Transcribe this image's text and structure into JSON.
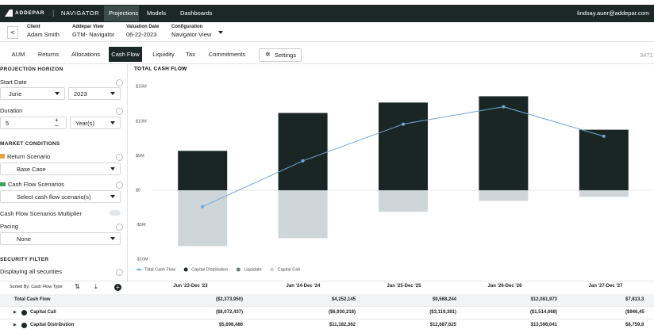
{
  "nav": {
    "logo": "ADDEPAR",
    "product": "NAVIGATOR",
    "tabs": [
      "Projections",
      "Models",
      "Dashboards"
    ],
    "user": "lindsay.auer@addepar.com"
  },
  "context": [
    {
      "label": "Client",
      "value": "Adam Smith"
    },
    {
      "label": "Addepar View",
      "value": "GTM- Navigator"
    },
    {
      "label": "Valuation Date",
      "value": "06-22-2023"
    },
    {
      "label": "Configuration",
      "value": "Navigator View"
    }
  ],
  "tabs": {
    "items": [
      "AUM",
      "Returns",
      "Allocations",
      "Cash Flow",
      "Liquidity",
      "Tax",
      "Commitments"
    ],
    "settings": "Settings",
    "right": "3471"
  },
  "sidebar": {
    "horizon": "PROJECTION HORIZON",
    "start_date": "Start Date",
    "month": "June",
    "year": "2023",
    "duration": "Duration",
    "duration_value": "5",
    "duration_unit": "Year(s)",
    "market": "MARKET CONDITIONS",
    "return_scenario": "Return Scenario",
    "return_value": "Base Case",
    "cf_scenarios": "Cash Flow Scenarios",
    "cf_value": "Select cash flow scenario(s)",
    "multiplier": "Cash Flow Scenarios Multiplier",
    "pacing": "Pacing",
    "pacing_value": "None",
    "security": "SECURITY FILTER",
    "securities": "Displaying all securities"
  },
  "chart_data": {
    "type": "bar",
    "title": "TOTAL CASH FLOW",
    "categories": [
      "Jun '23-Dec '23",
      "Jan '24-Dec '24",
      "Jan '25-Dec '25",
      "Jan '26-Dec '26",
      "Jan '27-Dec '27"
    ],
    "series": [
      {
        "name": "Total Cash Flow",
        "type": "line",
        "color": "#6fa8dc",
        "values": [
          -2.37395,
          4.252145,
          9.568244,
          12.081973,
          7.8133
        ]
      },
      {
        "name": "Capital Distribution",
        "type": "bar",
        "color": "#1a2624",
        "values": [
          5.698486,
          11.182362,
          12.687625,
          13.596041,
          8.7598
        ]
      },
      {
        "name": "Liquidate",
        "type": "bar",
        "color": "#6b7d78"
      },
      {
        "name": "Capital Call",
        "type": "bar",
        "color": "#cfd6da",
        "values": [
          -8.072437,
          -6.930218,
          -3.119381,
          -1.514068,
          -0.94645
        ]
      }
    ],
    "ylim": [
      -10,
      15
    ],
    "yticks": [
      {
        "value": 15,
        "label": "$15M"
      },
      {
        "value": 10,
        "label": "$10M"
      },
      {
        "value": 5,
        "label": "$5M"
      },
      {
        "value": 0,
        "label": "$0"
      },
      {
        "value": -5,
        "label": "-$5M"
      },
      {
        "value": -10,
        "label": "-$10M"
      }
    ]
  },
  "table": {
    "sort_label": "Sorted By: Cash Flow Type",
    "columns": [
      "Jun '23-Dec '23",
      "Jan '24-Dec '24",
      "Jan '25-Dec '25",
      "Jan '26-Dec '26",
      "Jan '27-Dec '27"
    ],
    "rows": [
      {
        "label": "Total Cash Flow",
        "cells": [
          "($2,373,950)",
          "$4,252,145",
          "$9,568,244",
          "$12,081,973",
          "$7,813,3"
        ]
      },
      {
        "label": "Capital Call",
        "cells": [
          "($8,072,437)",
          "($6,930,218)",
          "($3,119,381)",
          "($1,514,068)",
          "($946,45"
        ]
      },
      {
        "label": "Capital Distribution",
        "cells": [
          "$5,698,486",
          "$11,182,362",
          "$12,687,625",
          "$13,596,041",
          "$8,759,8"
        ]
      }
    ]
  }
}
